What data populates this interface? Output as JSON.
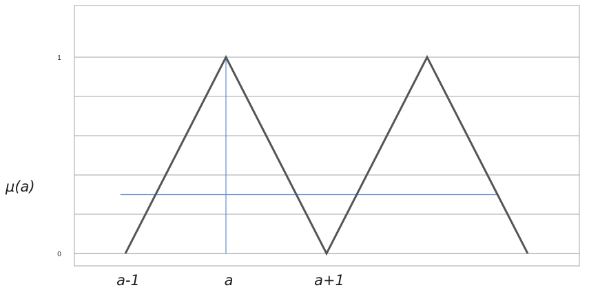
{
  "chart_data": {
    "type": "line",
    "title": "",
    "ylabel": "μ(a)",
    "xlabel": "",
    "ylim": [
      0,
      1.2
    ],
    "xlim": [
      -1.5,
      3.5
    ],
    "grid": true,
    "y_ticks": [
      {
        "value": 0,
        "label": "0"
      },
      {
        "value": 1,
        "label": "1"
      }
    ],
    "x_tick_labels": [
      {
        "value": -1,
        "label": "a-1"
      },
      {
        "value": 0,
        "label": "a"
      },
      {
        "value": 1,
        "label": "a+1"
      }
    ],
    "series": [
      {
        "points": [
          [
            -1,
            0
          ],
          [
            0,
            1
          ],
          [
            1,
            0
          ],
          [
            2,
            1
          ],
          [
            3,
            0
          ]
        ],
        "color": "#555555"
      }
    ],
    "reference_lines": [
      {
        "orientation": "vertical",
        "x": 0,
        "y_from": 0,
        "y_to": 1,
        "color": "#5b8fd0"
      },
      {
        "orientation": "horizontal",
        "y": 0.3,
        "x_from": -1.05,
        "x_to": 2.7,
        "color": "#5b8fd0"
      }
    ]
  }
}
